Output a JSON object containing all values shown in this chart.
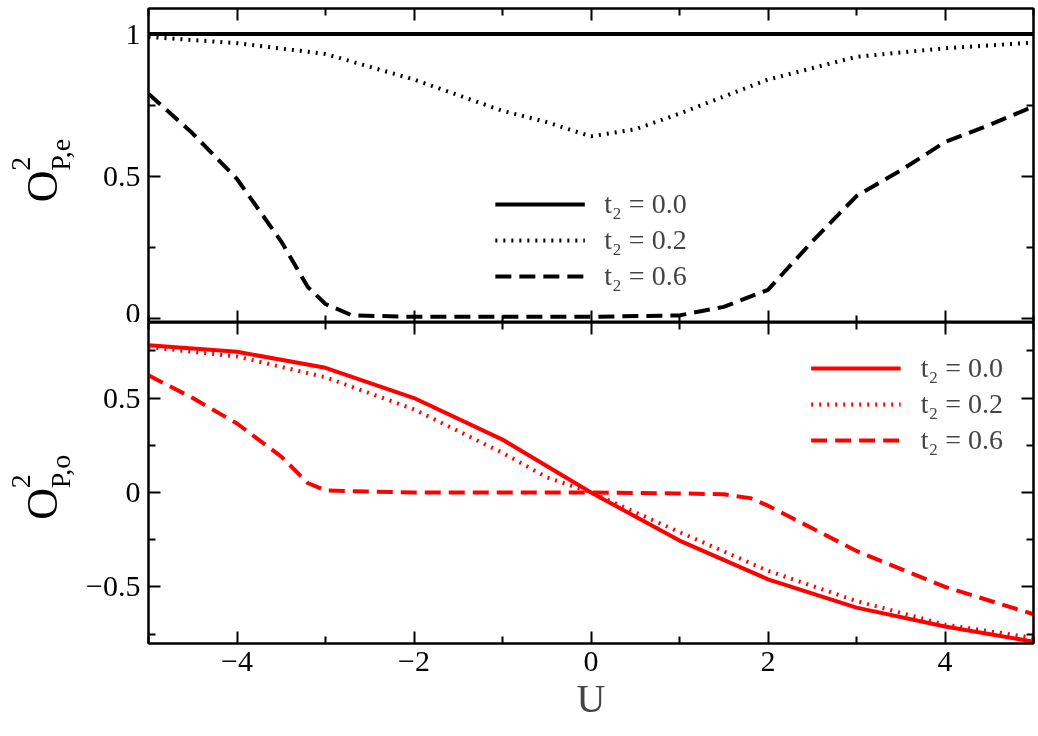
{
  "chart_data": [
    {
      "type": "line",
      "ylabel": "O$^{2}$$_{P,e}$",
      "xlim": [
        -5,
        5
      ],
      "ylim": [
        -0.015,
        1.09
      ],
      "xticks": [
        {
          "value": -5,
          "label": null
        },
        -4,
        {
          "value": -3,
          "label": null
        },
        -2,
        {
          "value": -1,
          "label": null
        },
        0,
        {
          "value": 1,
          "label": null
        },
        2,
        {
          "value": 3,
          "label": null
        },
        4,
        {
          "value": 5,
          "label": null
        }
      ],
      "yticks": [
        0,
        {
          "value": 0.25,
          "label": null
        },
        0.5,
        {
          "value": 0.75,
          "label": null
        },
        1
      ],
      "tick_labels": "y",
      "legend": "bottom",
      "grid": false,
      "series": [
        {
          "name": "t₂ = 0.0",
          "color": "#000000",
          "line_style": "solid",
          "x": [
            -5,
            5
          ],
          "values": [
            1,
            1
          ]
        },
        {
          "name": "t₂ = 0.2",
          "color": "#000000",
          "line_style": "dotted",
          "x": [
            -5,
            -4,
            -3,
            -2,
            -1,
            -0.5,
            0,
            0.5,
            1,
            2,
            3,
            4,
            5
          ],
          "values": [
            0.99,
            0.968,
            0.93,
            0.84,
            0.73,
            0.69,
            0.64,
            0.665,
            0.72,
            0.84,
            0.92,
            0.95,
            0.97
          ]
        },
        {
          "name": "t₂ = 0.6",
          "color": "#000000",
          "line_style": "dashed",
          "x": [
            -5,
            -4.5,
            -4,
            -3.5,
            -3.2,
            -3,
            -2.7,
            -2,
            -1,
            0,
            1,
            1.5,
            2,
            2.5,
            3,
            3.5,
            4,
            4.5,
            5
          ],
          "values": [
            0.79,
            0.65,
            0.49,
            0.27,
            0.11,
            0.05,
            0.01,
            0.005,
            0.005,
            0.005,
            0.01,
            0.04,
            0.1,
            0.27,
            0.43,
            0.52,
            0.62,
            0.68,
            0.745
          ]
        }
      ]
    },
    {
      "type": "line",
      "ylabel": "O$^{2}$$_{P,o}$",
      "xlabel": "U",
      "xlim": [
        -5,
        5
      ],
      "ylim": [
        -0.8,
        0.9
      ],
      "xticks": [
        {
          "value": -5,
          "label": null
        },
        -4,
        {
          "value": -3,
          "label": null
        },
        -2,
        {
          "value": -1,
          "label": null
        },
        0,
        {
          "value": 1,
          "label": null
        },
        2,
        {
          "value": 3,
          "label": null
        },
        4,
        {
          "value": 5,
          "label": null
        }
      ],
      "yticks": [
        {
          "value": -0.75,
          "label": null
        },
        -0.5,
        {
          "value": -0.25,
          "label": null
        },
        0,
        {
          "value": 0.25,
          "label": null
        },
        0.5,
        {
          "value": 0.75,
          "label": null
        }
      ],
      "legend": "top right",
      "grid": false,
      "series": [
        {
          "name": "t₂ = 0.0",
          "color": "#ff0000",
          "line_style": "solid",
          "x": [
            -5,
            -4,
            -3,
            -2,
            -1,
            0,
            1,
            2,
            3,
            4,
            5
          ],
          "values": [
            0.78,
            0.745,
            0.66,
            0.5,
            0.28,
            0,
            -0.255,
            -0.46,
            -0.61,
            -0.71,
            -0.79
          ]
        },
        {
          "name": "t₂ = 0.2",
          "color": "#ff0000",
          "line_style": "dotted",
          "x": [
            -5,
            -4,
            -3,
            -2,
            -1,
            -0.5,
            0,
            1,
            2,
            3,
            4,
            5
          ],
          "values": [
            0.77,
            0.72,
            0.61,
            0.44,
            0.21,
            0.08,
            0,
            -0.21,
            -0.415,
            -0.575,
            -0.7,
            -0.77
          ]
        },
        {
          "name": "t₂ = 0.6",
          "color": "#ff0000",
          "line_style": "dashed",
          "x": [
            -5,
            -4.5,
            -4,
            -3.5,
            -3.2,
            -3,
            -2,
            -1,
            0,
            1,
            1.5,
            1.8,
            2,
            2.5,
            3,
            4,
            5
          ],
          "values": [
            0.62,
            0.5,
            0.365,
            0.19,
            0.05,
            0.01,
            0,
            0,
            0,
            -0.005,
            -0.01,
            -0.03,
            -0.07,
            -0.19,
            -0.31,
            -0.5,
            -0.645
          ]
        }
      ]
    }
  ]
}
